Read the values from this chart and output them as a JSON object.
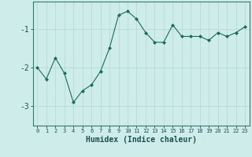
{
  "x": [
    0,
    1,
    2,
    3,
    4,
    5,
    6,
    7,
    8,
    9,
    10,
    11,
    12,
    13,
    14,
    15,
    16,
    17,
    18,
    19,
    20,
    21,
    22,
    23
  ],
  "y": [
    -2.0,
    -2.3,
    -1.75,
    -2.15,
    -2.9,
    -2.6,
    -2.45,
    -2.1,
    -1.5,
    -0.65,
    -0.55,
    -0.75,
    -1.1,
    -1.35,
    -1.35,
    -0.9,
    -1.2,
    -1.2,
    -1.2,
    -1.3,
    -1.1,
    -1.2,
    -1.1,
    -0.95
  ],
  "xlabel": "Humidex (Indice chaleur)",
  "yticks": [
    -3,
    -2,
    -1
  ],
  "ylim": [
    -3.5,
    -0.3
  ],
  "xlim": [
    -0.5,
    23.5
  ],
  "bg_color": "#ceecea",
  "grid_color": "#b8dbd8",
  "line_color": "#1a6b5e",
  "marker_color": "#1a6b5e",
  "xlabel_fontsize": 7,
  "tick_fontsize": 7,
  "xtick_fontsize": 5
}
